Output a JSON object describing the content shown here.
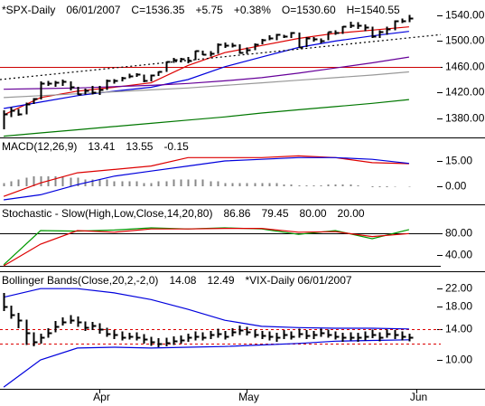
{
  "chart_data": [
    {
      "type": "ohlc",
      "title_parts": [
        {
          "text": "*SPX-Daily",
          "color": "#000000"
        },
        {
          "text": "06/01/2007",
          "color": "#000000"
        },
        {
          "text": "C=1536.35",
          "color": "#009900"
        },
        {
          "text": "+5.75",
          "color": "#009900"
        },
        {
          "text": "+0.38%",
          "color": "#009900"
        },
        {
          "text": "O=1530.60",
          "color": "#009900"
        },
        {
          "text": "H=1540.55",
          "color": "#000000"
        }
      ],
      "color": "#000000",
      "high": [
        1392,
        1397,
        1394,
        1404,
        1411,
        1437,
        1438,
        1438,
        1440,
        1437,
        1429,
        1426,
        1430,
        1430,
        1440,
        1441,
        1444,
        1449,
        1450,
        1448,
        1448,
        1453,
        1468,
        1474,
        1474,
        1475,
        1485,
        1485,
        1484,
        1496,
        1498,
        1497,
        1495,
        1490,
        1496,
        1503,
        1509,
        1511,
        1510,
        1514,
        1513,
        1506,
        1506,
        1504,
        1514,
        1517,
        1523,
        1530,
        1529,
        1526,
        1522,
        1517,
        1522,
        1532,
        1535,
        1540.55
      ],
      "low": [
        1363,
        1382,
        1384,
        1386,
        1402,
        1409,
        1430,
        1429,
        1430,
        1423,
        1416,
        1417,
        1417,
        1416,
        1424,
        1434,
        1437,
        1442,
        1444,
        1436,
        1437,
        1446,
        1452,
        1466,
        1467,
        1465,
        1470,
        1478,
        1476,
        1480,
        1489,
        1490,
        1480,
        1480,
        1486,
        1495,
        1501,
        1501,
        1505,
        1505,
        1490,
        1491,
        1499,
        1496,
        1501,
        1510,
        1511,
        1520,
        1519,
        1515,
        1505,
        1505,
        1510,
        1517,
        1528,
        1529
      ],
      "close": [
        1387,
        1392,
        1386,
        1402,
        1410,
        1435,
        1434,
        1436,
        1437,
        1429,
        1418,
        1423,
        1421,
        1424,
        1438,
        1438,
        1443,
        1445,
        1448,
        1438,
        1447,
        1452,
        1468,
        1471,
        1472,
        1470,
        1485,
        1480,
        1481,
        1495,
        1494,
        1494,
        1482,
        1487,
        1495,
        1502,
        1505,
        1510,
        1507,
        1513,
        1491,
        1505,
        1503,
        1501,
        1514,
        1513,
        1523,
        1525,
        1524,
        1522,
        1507,
        1515,
        1519,
        1531,
        1531,
        1536.35
      ],
      "series": [
        {
          "color": "#dd0000",
          "x": [
            0,
            5,
            10,
            15,
            20,
            25,
            30,
            35,
            40,
            45,
            50,
            55
          ],
          "values": [
            1385,
            1412,
            1422,
            1428,
            1435,
            1462,
            1482,
            1493,
            1504,
            1512,
            1517,
            1522
          ]
        },
        {
          "color": "#0000dd",
          "x": [
            0,
            5,
            10,
            15,
            20,
            25,
            30,
            35,
            40,
            45,
            50,
            55
          ],
          "values": [
            1395,
            1405,
            1415,
            1422,
            1428,
            1440,
            1460,
            1475,
            1490,
            1500,
            1508,
            1515
          ]
        },
        {
          "color": "#660099",
          "x": [
            0,
            5,
            10,
            15,
            20,
            25,
            30,
            35,
            40,
            45,
            50,
            55
          ],
          "values": [
            1425,
            1426,
            1427,
            1429,
            1431,
            1434,
            1438,
            1443,
            1450,
            1458,
            1466,
            1475
          ]
        },
        {
          "color": "#999999",
          "x": [
            0,
            5,
            10,
            15,
            20,
            25,
            30,
            35,
            40,
            45,
            50,
            55
          ],
          "values": [
            1412,
            1415,
            1418,
            1421,
            1424,
            1427,
            1431,
            1435,
            1439,
            1443,
            1447,
            1452
          ]
        },
        {
          "color": "#007700",
          "x": [
            0,
            5,
            10,
            15,
            20,
            25,
            30,
            35,
            40,
            45,
            50,
            55
          ],
          "values": [
            1352,
            1357,
            1362,
            1367,
            1372,
            1377,
            1382,
            1388,
            1393,
            1398,
            1403,
            1409
          ]
        },
        {
          "color": "#000000",
          "dashed": true,
          "x": [
            -0.5,
            59.3
          ],
          "values": [
            1440,
            1510
          ]
        }
      ],
      "hlines": [
        {
          "value": 1460,
          "color": "#cc0000"
        }
      ],
      "ylim": [
        1350,
        1561
      ],
      "yticks": [
        {
          "value": 1540,
          "label": "1540.00"
        },
        {
          "value": 1500,
          "label": "1500.00"
        },
        {
          "value": 1460,
          "label": "1460.00"
        },
        {
          "value": 1420,
          "label": "1420.00"
        },
        {
          "value": 1380,
          "label": "1380.00"
        }
      ]
    },
    {
      "type": "line",
      "title_parts": [
        {
          "text": "MACD(12,26,9)",
          "color": "#000000"
        },
        {
          "text": "13.41",
          "color": "#dd0000"
        },
        {
          "text": "13.55",
          "color": "#0000dd"
        },
        {
          "text": "-0.15",
          "color": "#888888"
        }
      ],
      "series": [
        {
          "color": "#dd0000",
          "x": [
            0,
            5,
            10,
            15,
            20,
            25,
            30,
            35,
            40,
            45,
            50,
            55
          ],
          "values": [
            -6,
            2,
            8,
            10,
            12,
            17,
            17,
            17,
            18,
            17,
            14,
            13.41
          ]
        },
        {
          "color": "#0000dd",
          "x": [
            0,
            5,
            10,
            15,
            20,
            25,
            30,
            35,
            40,
            45,
            50,
            55
          ],
          "values": [
            -8,
            -5,
            1,
            6,
            9,
            12,
            15,
            16,
            17,
            17,
            16,
            13.55
          ]
        }
      ],
      "histogram": {
        "color": "#888888",
        "values": [
          2,
          3,
          4,
          5,
          6,
          6,
          6,
          6,
          6,
          5,
          5,
          4,
          4,
          4,
          4,
          3,
          3,
          3,
          3,
          2,
          2,
          3,
          3,
          4,
          4,
          4,
          4,
          4,
          3,
          3,
          2,
          2,
          2,
          2,
          2,
          2,
          2,
          2,
          1,
          1,
          0.5,
          0.5,
          0.5,
          0.5,
          1,
          1,
          1,
          1,
          0.5,
          0,
          -0.5,
          -0.5,
          -0.5,
          -0.3,
          0,
          -0.15
        ]
      },
      "ylim": [
        -10.7,
        28.4
      ],
      "yticks": [
        {
          "value": 15,
          "label": "15.00"
        },
        {
          "value": 0,
          "label": "0.00"
        }
      ]
    },
    {
      "type": "line",
      "title_parts": [
        {
          "text": "Stochastic - Slow(High,Low,Close,14,20,80)",
          "color": "#000000"
        },
        {
          "text": "86.86",
          "color": "#009900"
        },
        {
          "text": "79.45",
          "color": "#dd0000"
        },
        {
          "text": "80.00",
          "color": "#000000"
        },
        {
          "text": "20.00",
          "color": "#000000"
        }
      ],
      "series": [
        {
          "color": "#009900",
          "x": [
            0,
            5,
            10,
            15,
            20,
            25,
            30,
            35,
            40,
            45,
            50,
            55
          ],
          "values": [
            22,
            85,
            84,
            86,
            90,
            88,
            90,
            88,
            78,
            85,
            70,
            86.86
          ]
        },
        {
          "color": "#dd0000",
          "x": [
            0,
            5,
            10,
            15,
            20,
            25,
            30,
            35,
            40,
            45,
            50,
            55
          ],
          "values": [
            20,
            60,
            85,
            82,
            88,
            88,
            89,
            89,
            82,
            83,
            74,
            79.45
          ]
        }
      ],
      "hlines": [
        {
          "value": 80,
          "color": "#000000"
        },
        {
          "value": 20,
          "color": "#000000"
        }
      ],
      "ylim": [
        10,
        131.7
      ],
      "yticks": [
        {
          "value": 80,
          "label": "80.00"
        },
        {
          "value": 40,
          "label": "40.00"
        }
      ]
    },
    {
      "type": "ohlc",
      "title_parts": [
        {
          "text": "Bollinger Bands(Close,20,2,-2,0)",
          "color": "#000000"
        },
        {
          "text": "14.08",
          "color": "#0000dd"
        },
        {
          "text": "12.49",
          "color": "#0000dd"
        },
        {
          "text": "*VIX-Daily 06/01/2007",
          "color": "#000000"
        }
      ],
      "color": "#000000",
      "log_scale": true,
      "high": [
        21,
        18.2,
        16.8,
        15.6,
        13.6,
        13.4,
        14.2,
        15.4,
        16.0,
        16.4,
        16.2,
        15.3,
        15.2,
        15.0,
        14.3,
        13.9,
        13.7,
        13.5,
        13.6,
        13.3,
        12.9,
        12.7,
        12.8,
        13.0,
        13.1,
        13.4,
        13.7,
        13.6,
        13.8,
        14.1,
        13.8,
        14.2,
        14.6,
        14.4,
        14.0,
        13.8,
        13.7,
        13.5,
        13.9,
        13.7,
        14.1,
        13.9,
        13.8,
        14.1,
        14.0,
        13.7,
        13.5,
        13.6,
        13.5,
        13.7,
        14.0,
        13.6,
        14.0,
        13.9,
        13.7,
        13.4
      ],
      "low": [
        17.2,
        15.8,
        14.2,
        11.8,
        11.6,
        12.0,
        12.8,
        13.6,
        14.6,
        14.9,
        14.4,
        13.8,
        13.9,
        13.4,
        12.9,
        12.6,
        12.4,
        12.5,
        12.4,
        12.0,
        11.7,
        11.5,
        11.6,
        11.8,
        12.0,
        12.2,
        12.4,
        12.4,
        12.6,
        12.8,
        12.5,
        13.0,
        13.2,
        13.1,
        12.8,
        12.6,
        12.4,
        12.2,
        12.6,
        12.5,
        12.8,
        12.6,
        12.6,
        12.9,
        12.8,
        12.5,
        12.2,
        12.4,
        12.2,
        12.4,
        12.7,
        12.3,
        12.8,
        12.6,
        12.4,
        12.3
      ],
      "close": [
        18,
        16.5,
        15.5,
        13.5,
        12.2,
        12.8,
        13.5,
        14.5,
        15.2,
        15.6,
        15.2,
        14.3,
        14.6,
        14.0,
        13.4,
        13.2,
        12.9,
        13.0,
        12.9,
        12.6,
        12.2,
        12.0,
        12.1,
        12.3,
        12.5,
        12.8,
        13.0,
        12.9,
        13.2,
        13.4,
        13.0,
        13.6,
        13.9,
        13.7,
        13.3,
        13.1,
        13.0,
        12.8,
        13.2,
        13.0,
        13.4,
        13.1,
        13.2,
        13.5,
        13.3,
        13.0,
        12.8,
        12.9,
        12.8,
        13.0,
        13.3,
        12.8,
        13.4,
        13.2,
        13.0,
        12.8
      ],
      "series": [
        {
          "color": "#0000dd",
          "x": [
            0,
            5,
            10,
            15,
            20,
            25,
            30,
            35,
            40,
            45,
            50,
            55
          ],
          "values": [
            20,
            22,
            22,
            21,
            19.5,
            17.5,
            15.5,
            14.5,
            14.3,
            14.2,
            14.2,
            14.08
          ]
        },
        {
          "color": "#0000dd",
          "x": [
            0,
            5,
            10,
            15,
            20,
            25,
            30,
            35,
            40,
            45,
            50,
            55
          ],
          "values": [
            7.4,
            10,
            11.4,
            11.5,
            11.4,
            11.5,
            11.6,
            11.8,
            12.0,
            12.3,
            12.4,
            12.49
          ]
        }
      ],
      "hlines": [
        {
          "value": 14,
          "color": "#dd0000",
          "dashed": true
        },
        {
          "value": 12,
          "color": "#dd0000",
          "dashed": true
        }
      ],
      "ylim": [
        7.26,
        26.4
      ],
      "yticks": [
        {
          "value": 22,
          "label": "22.00"
        },
        {
          "value": 18,
          "label": "18.00"
        },
        {
          "value": 14,
          "label": "14.00"
        },
        {
          "value": 10,
          "label": "10.00"
        }
      ],
      "xlim": [
        -0.5,
        59.3
      ],
      "xticks": [
        {
          "value": 13,
          "label": "Apr"
        },
        {
          "value": 33,
          "label": "May"
        },
        {
          "value": 56,
          "label": "Jun"
        }
      ]
    }
  ]
}
